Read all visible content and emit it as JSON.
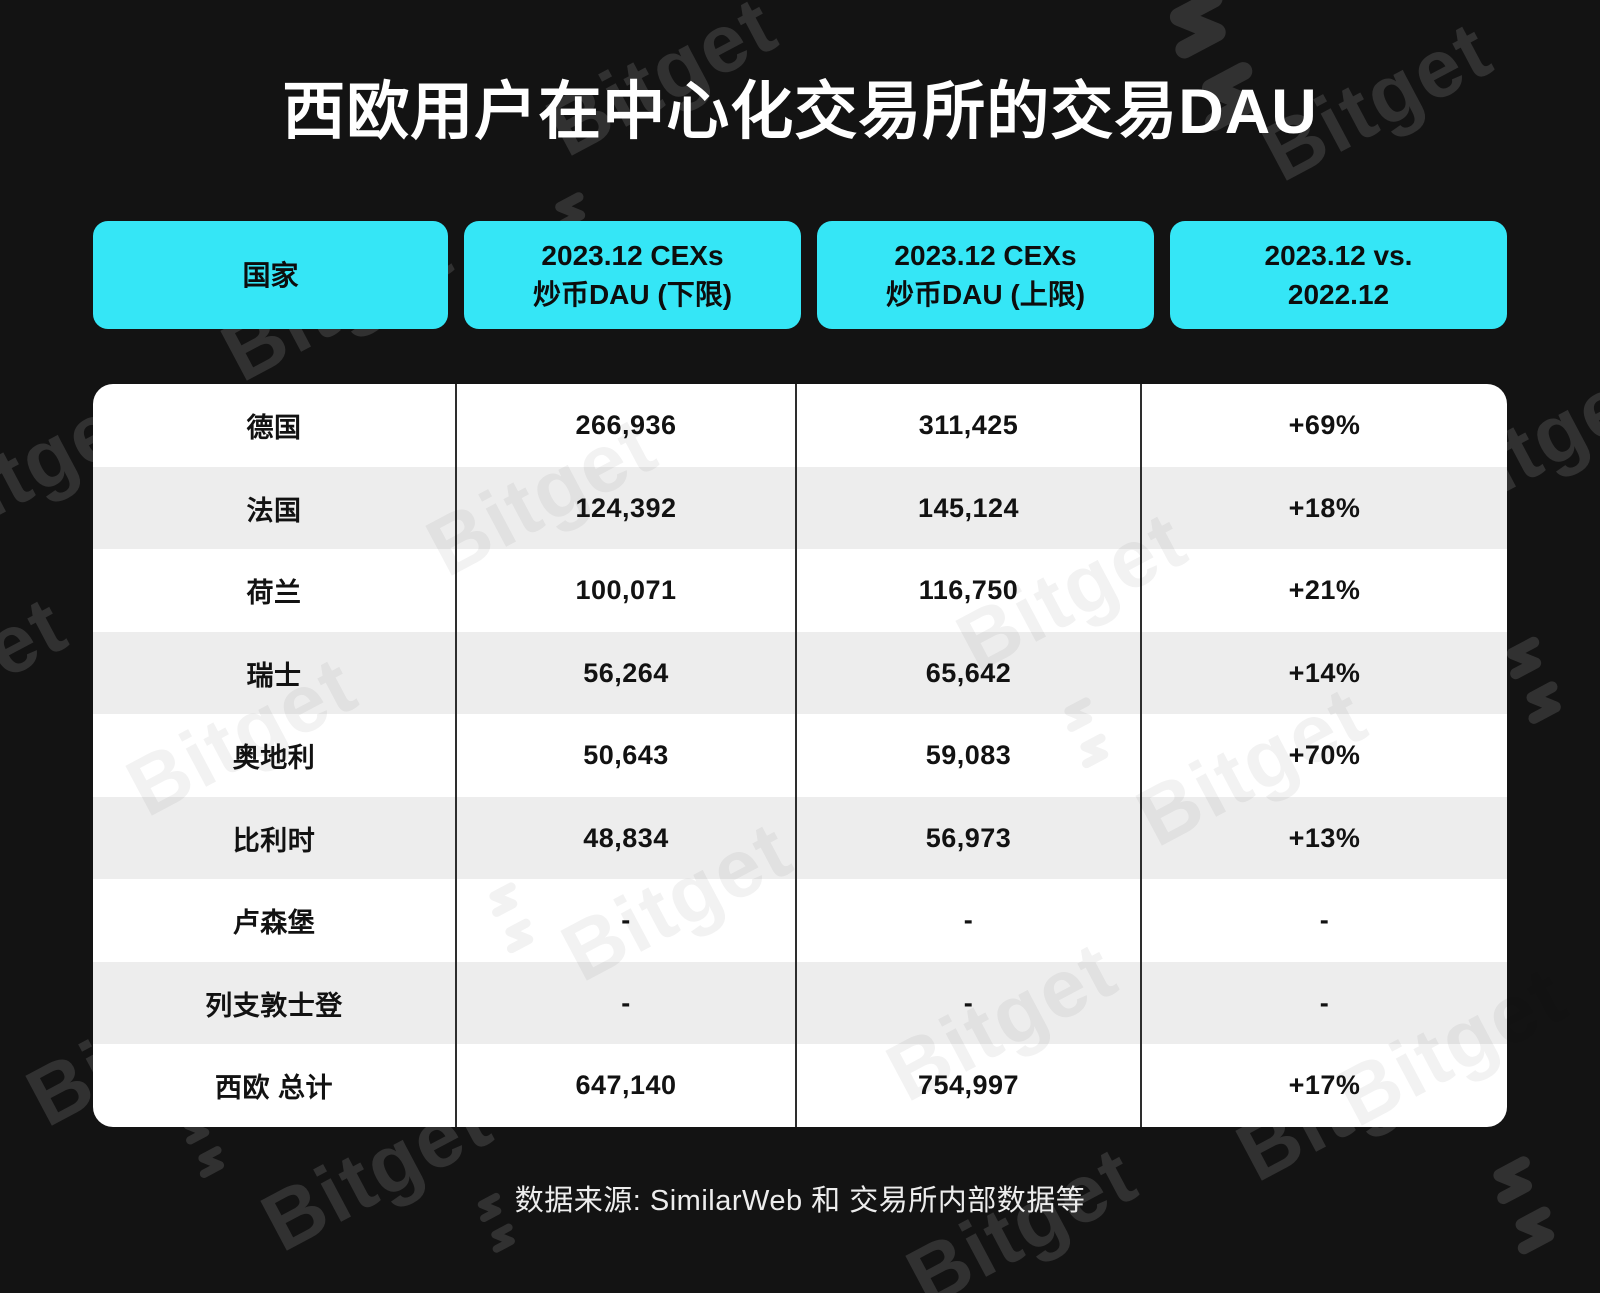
{
  "chart_data": {
    "type": "table",
    "title": "西欧用户在中心化交易所的交易DAU",
    "columns": [
      "国家",
      "2023.12 CEXs\n炒币DAU (下限)",
      "2023.12 CEXs\n炒币DAU (上限)",
      "2023.12 vs.\n2022.12"
    ],
    "rows": [
      {
        "country": "德国",
        "lower": "266,936",
        "upper": "311,425",
        "change": "+69%"
      },
      {
        "country": "法国",
        "lower": "124,392",
        "upper": "145,124",
        "change": "+18%"
      },
      {
        "country": "荷兰",
        "lower": "100,071",
        "upper": "116,750",
        "change": "+21%"
      },
      {
        "country": "瑞士",
        "lower": "56,264",
        "upper": "65,642",
        "change": "+14%"
      },
      {
        "country": "奥地利",
        "lower": "50,643",
        "upper": "59,083",
        "change": "+70%"
      },
      {
        "country": "比利时",
        "lower": "48,834",
        "upper": "56,973",
        "change": "+13%"
      },
      {
        "country": "卢森堡",
        "lower": "-",
        "upper": "-",
        "change": "-"
      },
      {
        "country": "列支敦士登",
        "lower": "-",
        "upper": "-",
        "change": "-"
      },
      {
        "country": "西欧 总计",
        "lower": "647,140",
        "upper": "754,997",
        "change": "+17%"
      }
    ],
    "source": "数据来源: SimilarWeb 和 交易所内部数据等"
  },
  "watermark": {
    "text": "Bitget"
  },
  "colors": {
    "accent_cyan": "#35e6f6",
    "background": "#131313",
    "table_alt_row": "#ededed",
    "column_divider": "#2e2e2e"
  }
}
